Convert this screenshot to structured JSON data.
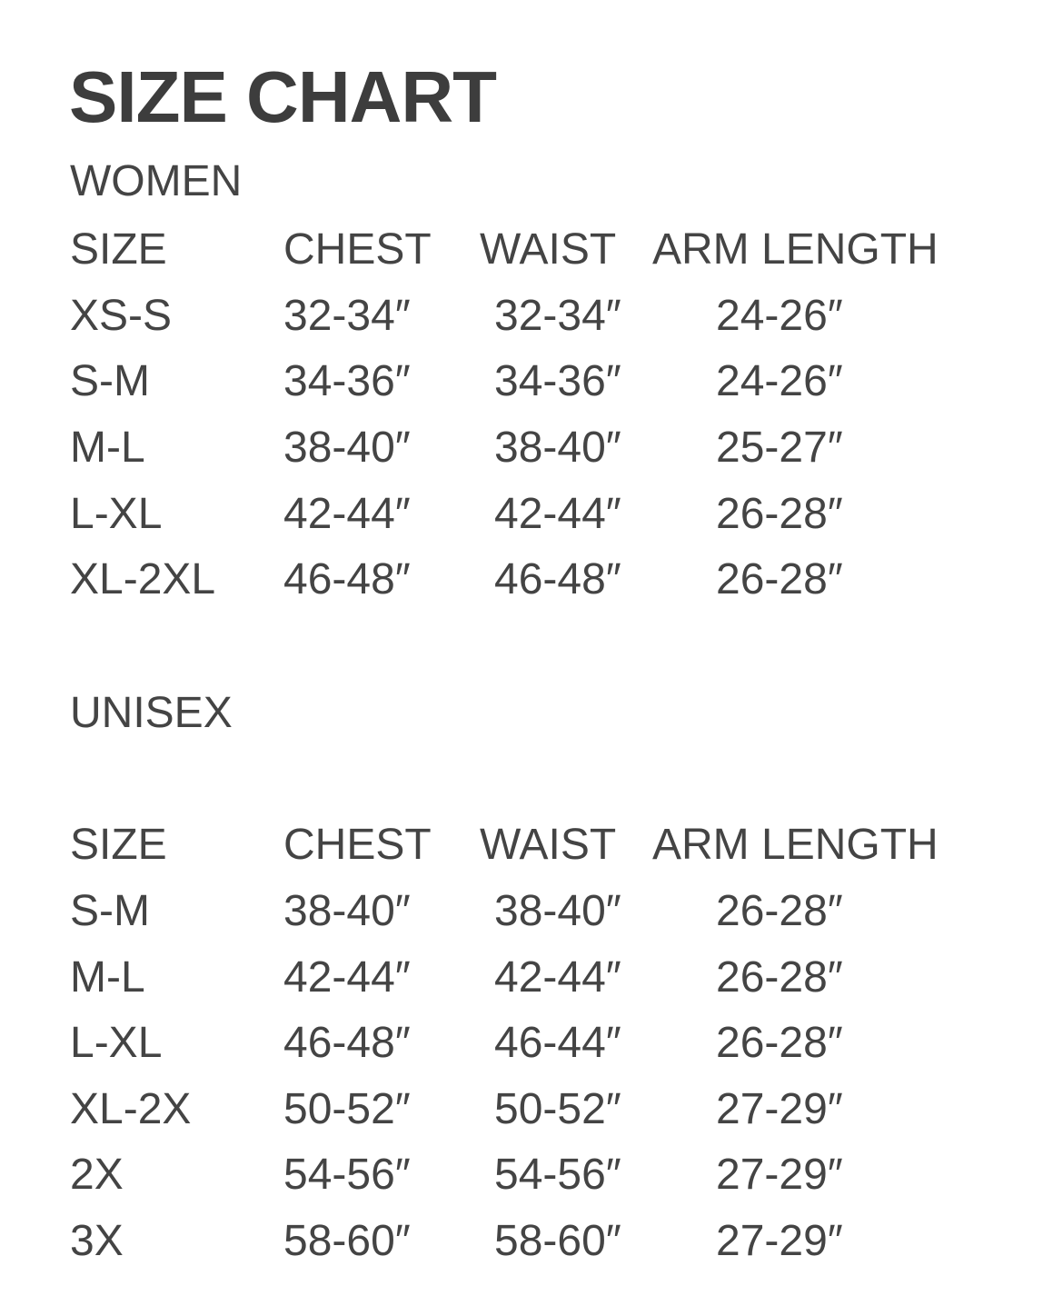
{
  "title": "SIZE CHART",
  "sections": [
    {
      "label": "WOMEN",
      "headers": [
        "SIZE",
        "CHEST",
        "WAIST",
        "ARM LENGTH"
      ],
      "rows": [
        [
          "XS-S",
          "32-34″",
          "32-34″",
          "24-26″"
        ],
        [
          "S-M",
          "34-36″",
          "34-36″",
          "24-26″"
        ],
        [
          "M-L",
          "38-40″",
          "38-40″",
          "25-27″"
        ],
        [
          "L-XL",
          "42-44″",
          "42-44″",
          "26-28″"
        ],
        [
          "XL-2XL",
          "46-48″",
          "46-48″",
          "26-28″"
        ]
      ]
    },
    {
      "label": "UNISEX",
      "headers": [
        "SIZE",
        "CHEST",
        "WAIST",
        "ARM LENGTH"
      ],
      "rows": [
        [
          "S-M",
          "38-40″",
          "38-40″",
          "26-28″"
        ],
        [
          "M-L",
          "42-44″",
          "42-44″",
          "26-28″"
        ],
        [
          "L-XL",
          "46-48″",
          "46-44″",
          "26-28″"
        ],
        [
          "XL-2X",
          "50-52″",
          "50-52″",
          "27-29″"
        ],
        [
          "2X",
          "54-56″",
          "54-56″",
          "27-29″"
        ],
        [
          "3X",
          "58-60″",
          "58-60″",
          "27-29″"
        ]
      ]
    }
  ]
}
